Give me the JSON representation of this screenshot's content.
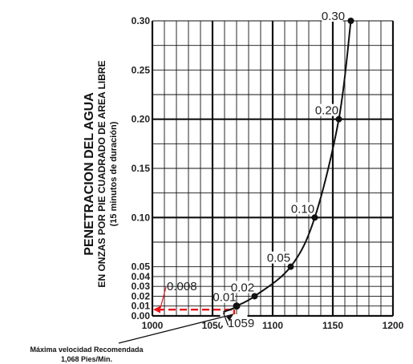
{
  "chart_data": {
    "type": "line",
    "title": "",
    "ylabel_lines": [
      "PENETRACION DEL AGUA",
      "EN ONZAS POR PIE CUADRADO DE AREA LIBRE",
      "(15 minutos de duración)"
    ],
    "xlim": [
      1000,
      1200
    ],
    "ylim": [
      0,
      0.3
    ],
    "x_ticks": [
      {
        "value": 1000,
        "label": "1000"
      },
      {
        "value": 1050,
        "label": "1050"
      },
      {
        "value": 1100,
        "label": "1100"
      },
      {
        "value": 1150,
        "label": "1150"
      },
      {
        "value": 1200,
        "label": "1200"
      }
    ],
    "y_ticks": [
      {
        "value": 0.0,
        "label": "0.00"
      },
      {
        "value": 0.01,
        "label": "0.01"
      },
      {
        "value": 0.02,
        "label": "0.02"
      },
      {
        "value": 0.03,
        "label": "0.03"
      },
      {
        "value": 0.04,
        "label": "0.04"
      },
      {
        "value": 0.05,
        "label": "0.05"
      },
      {
        "value": 0.1,
        "label": "0.10"
      },
      {
        "value": 0.15,
        "label": "0.15"
      },
      {
        "value": 0.2,
        "label": "0.20"
      },
      {
        "value": 0.25,
        "label": "0.25"
      },
      {
        "value": 0.3,
        "label": "0.30"
      }
    ],
    "series": [
      {
        "points": [
          {
            "x": 1059,
            "y": 0.004
          },
          {
            "x": 1068,
            "y": 0.008
          },
          {
            "x": 1070,
            "y": 0.01,
            "label": "0.01"
          },
          {
            "x": 1085,
            "y": 0.02,
            "label": "0.02"
          },
          {
            "x": 1115,
            "y": 0.05,
            "label": "0.05"
          },
          {
            "x": 1135,
            "y": 0.1,
            "label": "0.10"
          },
          {
            "x": 1155,
            "y": 0.2,
            "label": "0.20"
          },
          {
            "x": 1165,
            "y": 0.3,
            "label": "0.30"
          }
        ]
      }
    ],
    "annotations": {
      "recommended_penetration": {
        "x": 1068,
        "y": 0.008,
        "label": "0.008",
        "color": "#e8141b"
      },
      "x_mark": {
        "x": 1059,
        "label": "1059"
      },
      "note_lines": [
        "Máxima velocidad Recomendada",
        "1,068 Pies/Min."
      ]
    },
    "grid": true
  }
}
